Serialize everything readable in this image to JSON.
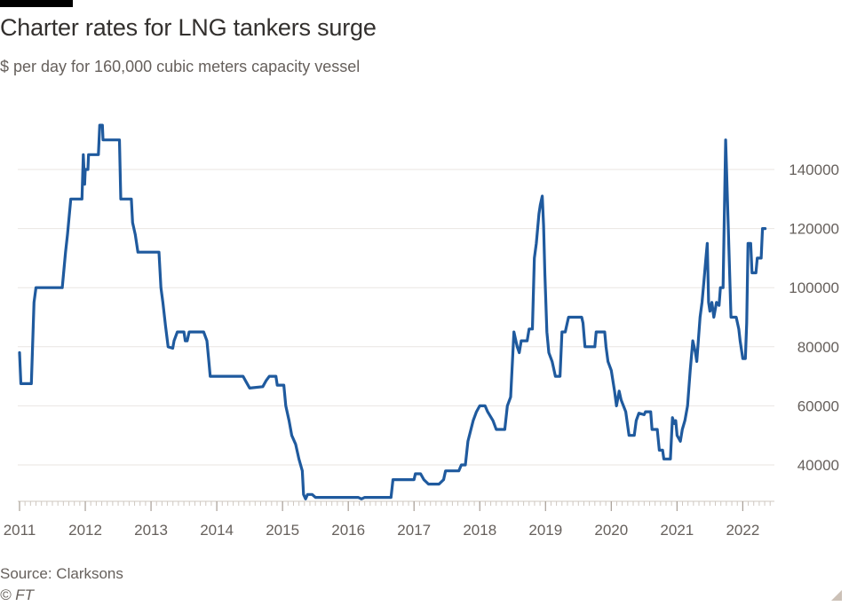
{
  "header": {
    "title": "Charter rates for LNG tankers surge",
    "subtitle": "$ per day for 160,000 cubic meters capacity vessel"
  },
  "footer": {
    "source": "Source: Clarksons",
    "copyright": "© FT"
  },
  "colors": {
    "line": "#1f5a9e",
    "grid": "#e9e6e2",
    "axis_text": "#66605c",
    "brand_bar": "#000000"
  },
  "chart_data": {
    "type": "line",
    "title": "Charter rates for LNG tankers surge",
    "ylabel": "",
    "xlabel": "",
    "xlim": [
      2011,
      2022.4
    ],
    "ylim": [
      25000,
      155000
    ],
    "y_ticks": [
      40000,
      60000,
      80000,
      100000,
      120000,
      140000
    ],
    "y_tick_labels": [
      "40000",
      "60000",
      "80000",
      "100000",
      "120000",
      "140000"
    ],
    "x_ticks": [
      2011,
      2012,
      2013,
      2014,
      2015,
      2016,
      2017,
      2018,
      2019,
      2020,
      2021,
      2022
    ],
    "x_tick_labels": [
      "2011",
      "2012",
      "2013",
      "2014",
      "2015",
      "2016",
      "2017",
      "2018",
      "2019",
      "2020",
      "2021",
      "2022"
    ],
    "grid": true,
    "y_axis_position": "right",
    "series": [
      {
        "values": [
          [
            2011.0,
            78000
          ],
          [
            2011.02,
            67500
          ],
          [
            2011.18,
            67500
          ],
          [
            2011.22,
            95000
          ],
          [
            2011.25,
            100000
          ],
          [
            2011.65,
            100000
          ],
          [
            2011.7,
            112000
          ],
          [
            2011.73,
            118000
          ],
          [
            2011.78,
            130000
          ],
          [
            2011.95,
            130000
          ],
          [
            2011.97,
            145000
          ],
          [
            2011.99,
            135000
          ],
          [
            2012.0,
            140000
          ],
          [
            2012.04,
            140000
          ],
          [
            2012.05,
            145000
          ],
          [
            2012.2,
            145000
          ],
          [
            2012.22,
            155000
          ],
          [
            2012.26,
            155000
          ],
          [
            2012.27,
            150000
          ],
          [
            2012.52,
            150000
          ],
          [
            2012.54,
            130000
          ],
          [
            2012.7,
            130000
          ],
          [
            2012.72,
            122000
          ],
          [
            2012.76,
            118000
          ],
          [
            2012.8,
            112000
          ],
          [
            2013.12,
            112000
          ],
          [
            2013.15,
            100000
          ],
          [
            2013.18,
            95000
          ],
          [
            2013.22,
            87000
          ],
          [
            2013.26,
            80000
          ],
          [
            2013.33,
            79500
          ],
          [
            2013.35,
            82000
          ],
          [
            2013.4,
            85000
          ],
          [
            2013.5,
            85000
          ],
          [
            2013.52,
            82000
          ],
          [
            2013.55,
            82000
          ],
          [
            2013.58,
            85000
          ],
          [
            2013.8,
            85000
          ],
          [
            2013.85,
            82000
          ],
          [
            2013.88,
            75000
          ],
          [
            2013.9,
            70000
          ],
          [
            2014.4,
            70000
          ],
          [
            2014.45,
            68000
          ],
          [
            2014.5,
            66000
          ],
          [
            2014.7,
            66500
          ],
          [
            2014.75,
            68500
          ],
          [
            2014.8,
            70000
          ],
          [
            2014.9,
            70000
          ],
          [
            2014.92,
            67000
          ],
          [
            2015.02,
            67000
          ],
          [
            2015.05,
            60000
          ],
          [
            2015.1,
            55000
          ],
          [
            2015.14,
            50000
          ],
          [
            2015.2,
            47000
          ],
          [
            2015.25,
            42000
          ],
          [
            2015.3,
            38000
          ],
          [
            2015.32,
            30000
          ],
          [
            2015.35,
            28500
          ],
          [
            2015.38,
            30000
          ],
          [
            2015.45,
            30000
          ],
          [
            2015.5,
            29000
          ],
          [
            2016.15,
            29000
          ],
          [
            2016.2,
            28500
          ],
          [
            2016.25,
            29000
          ],
          [
            2016.65,
            29000
          ],
          [
            2016.68,
            35000
          ],
          [
            2017.0,
            35000
          ],
          [
            2017.02,
            37000
          ],
          [
            2017.1,
            37000
          ],
          [
            2017.15,
            35000
          ],
          [
            2017.22,
            33500
          ],
          [
            2017.38,
            33500
          ],
          [
            2017.45,
            35000
          ],
          [
            2017.48,
            38000
          ],
          [
            2017.68,
            38000
          ],
          [
            2017.72,
            40000
          ],
          [
            2017.78,
            40000
          ],
          [
            2017.82,
            48000
          ],
          [
            2017.9,
            55000
          ],
          [
            2017.95,
            58000
          ],
          [
            2018.0,
            60000
          ],
          [
            2018.08,
            60000
          ],
          [
            2018.12,
            58000
          ],
          [
            2018.2,
            55000
          ],
          [
            2018.25,
            52000
          ],
          [
            2018.38,
            52000
          ],
          [
            2018.42,
            60000
          ],
          [
            2018.47,
            63000
          ],
          [
            2018.52,
            85000
          ],
          [
            2018.57,
            80000
          ],
          [
            2018.6,
            78000
          ],
          [
            2018.63,
            82000
          ],
          [
            2018.72,
            82000
          ],
          [
            2018.75,
            86000
          ],
          [
            2018.8,
            86000
          ],
          [
            2018.83,
            110000
          ],
          [
            2018.86,
            115000
          ],
          [
            2018.9,
            125000
          ],
          [
            2018.92,
            128000
          ],
          [
            2018.95,
            131000
          ],
          [
            2018.97,
            121000
          ],
          [
            2018.99,
            105000
          ],
          [
            2019.02,
            85000
          ],
          [
            2019.05,
            78000
          ],
          [
            2019.1,
            75000
          ],
          [
            2019.15,
            70000
          ],
          [
            2019.22,
            70000
          ],
          [
            2019.25,
            85000
          ],
          [
            2019.3,
            85000
          ],
          [
            2019.33,
            88000
          ],
          [
            2019.35,
            90000
          ],
          [
            2019.55,
            90000
          ],
          [
            2019.57,
            88000
          ],
          [
            2019.6,
            80000
          ],
          [
            2019.75,
            80000
          ],
          [
            2019.77,
            85000
          ],
          [
            2019.9,
            85000
          ],
          [
            2019.92,
            80000
          ],
          [
            2019.95,
            75000
          ],
          [
            2020.0,
            72000
          ],
          [
            2020.05,
            65000
          ],
          [
            2020.08,
            60000
          ],
          [
            2020.12,
            65000
          ],
          [
            2020.15,
            62000
          ],
          [
            2020.22,
            58000
          ],
          [
            2020.27,
            50000
          ],
          [
            2020.35,
            50000
          ],
          [
            2020.38,
            55000
          ],
          [
            2020.42,
            57500
          ],
          [
            2020.5,
            57000
          ],
          [
            2020.52,
            58000
          ],
          [
            2020.6,
            58000
          ],
          [
            2020.62,
            52000
          ],
          [
            2020.7,
            52000
          ],
          [
            2020.73,
            45000
          ],
          [
            2020.78,
            45000
          ],
          [
            2020.8,
            42000
          ],
          [
            2020.9,
            42000
          ],
          [
            2020.93,
            56000
          ],
          [
            2020.96,
            54000
          ],
          [
            2020.98,
            55000
          ],
          [
            2021.0,
            50000
          ],
          [
            2021.05,
            48000
          ],
          [
            2021.08,
            52000
          ],
          [
            2021.12,
            55000
          ],
          [
            2021.16,
            60000
          ],
          [
            2021.2,
            72000
          ],
          [
            2021.24,
            82000
          ],
          [
            2021.28,
            78000
          ],
          [
            2021.3,
            75000
          ],
          [
            2021.35,
            90000
          ],
          [
            2021.38,
            95000
          ],
          [
            2021.4,
            100000
          ],
          [
            2021.44,
            110000
          ],
          [
            2021.46,
            115000
          ],
          [
            2021.48,
            95000
          ],
          [
            2021.5,
            92000
          ],
          [
            2021.53,
            95000
          ],
          [
            2021.56,
            90000
          ],
          [
            2021.6,
            95000
          ],
          [
            2021.64,
            94000
          ],
          [
            2021.66,
            100000
          ],
          [
            2021.7,
            100000
          ],
          [
            2021.74,
            150000
          ],
          [
            2021.78,
            120000
          ],
          [
            2021.82,
            90000
          ],
          [
            2021.9,
            90000
          ],
          [
            2021.94,
            86000
          ],
          [
            2021.96,
            82000
          ],
          [
            2022.0,
            76000
          ],
          [
            2022.04,
            76000
          ],
          [
            2022.06,
            88000
          ],
          [
            2022.08,
            115000
          ],
          [
            2022.12,
            115000
          ],
          [
            2022.14,
            105000
          ],
          [
            2022.2,
            105000
          ],
          [
            2022.22,
            110000
          ],
          [
            2022.28,
            110000
          ],
          [
            2022.3,
            120000
          ],
          [
            2022.34,
            120000
          ]
        ]
      }
    ]
  }
}
